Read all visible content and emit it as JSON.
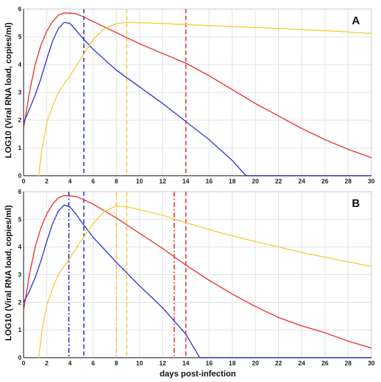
{
  "chart_data": {
    "type": "line",
    "xlabel": "days post-infection",
    "ylabel": "LOG10 (Viral RNA load, copies/ml)",
    "xlim": [
      0,
      30
    ],
    "ylim": [
      0,
      6
    ],
    "x_ticks": [
      "0",
      "2",
      "4",
      "6",
      "8",
      "10",
      "12",
      "14",
      "16",
      "18",
      "20",
      "22",
      "24",
      "26",
      "28",
      "30"
    ],
    "y_ticks": [
      "0",
      "1",
      "2",
      "3",
      "4",
      "5",
      "6"
    ],
    "grid": true,
    "colors": {
      "red": "#e8312f",
      "blue": "#2d35d8",
      "yellow": "#f5cc3a"
    },
    "panels": [
      {
        "label": "A",
        "series": [
          {
            "color": "red",
            "points": [
              [
                0,
                1.7
              ],
              [
                0.5,
                3.0
              ],
              [
                1,
                4.0
              ],
              [
                1.5,
                4.7
              ],
              [
                2,
                5.2
              ],
              [
                2.5,
                5.55
              ],
              [
                3,
                5.78
              ],
              [
                3.5,
                5.86
              ],
              [
                4,
                5.85
              ],
              [
                4.5,
                5.83
              ],
              [
                5,
                5.75
              ],
              [
                6,
                5.55
              ],
              [
                8,
                5.15
              ],
              [
                10,
                4.75
              ],
              [
                12,
                4.4
              ],
              [
                14,
                4.05
              ],
              [
                16,
                3.6
              ],
              [
                18,
                3.1
              ],
              [
                20,
                2.6
              ],
              [
                22,
                2.15
              ],
              [
                24,
                1.7
              ],
              [
                26,
                1.3
              ],
              [
                28,
                0.95
              ],
              [
                30,
                0.65
              ]
            ]
          },
          {
            "color": "blue",
            "points": [
              [
                0,
                1.9
              ],
              [
                0.5,
                2.4
              ],
              [
                1,
                2.9
              ],
              [
                1.5,
                3.5
              ],
              [
                2,
                4.2
              ],
              [
                2.5,
                4.85
              ],
              [
                3,
                5.3
              ],
              [
                3.5,
                5.52
              ],
              [
                4,
                5.48
              ],
              [
                4.5,
                5.25
              ],
              [
                5,
                5.0
              ],
              [
                6,
                4.55
              ],
              [
                8,
                3.8
              ],
              [
                10,
                3.2
              ],
              [
                12,
                2.6
              ],
              [
                14,
                1.95
              ],
              [
                16,
                1.3
              ],
              [
                18,
                0.55
              ],
              [
                19.2,
                0
              ],
              [
                30,
                0
              ]
            ]
          },
          {
            "color": "yellow",
            "points": [
              [
                1.3,
                0
              ],
              [
                1.6,
                1.0
              ],
              [
                2,
                1.9
              ],
              [
                2.5,
                2.5
              ],
              [
                3,
                3.0
              ],
              [
                4,
                3.6
              ],
              [
                5,
                4.25
              ],
              [
                6,
                4.9
              ],
              [
                7,
                5.3
              ],
              [
                8,
                5.48
              ],
              [
                9,
                5.52
              ],
              [
                12,
                5.48
              ],
              [
                15,
                5.42
              ],
              [
                18,
                5.37
              ],
              [
                21,
                5.32
              ],
              [
                24,
                5.26
              ],
              [
                27,
                5.2
              ],
              [
                30,
                5.12
              ]
            ]
          }
        ],
        "vlines": [
          {
            "x": 5.2,
            "color": "blue",
            "style": "dashed"
          },
          {
            "x": 8.9,
            "color": "yellow",
            "style": "dashed"
          },
          {
            "x": 14.0,
            "color": "red",
            "style": "dashed"
          }
        ]
      },
      {
        "label": "B",
        "series": [
          {
            "color": "red",
            "points": [
              [
                0,
                1.7
              ],
              [
                0.5,
                3.0
              ],
              [
                1,
                4.0
              ],
              [
                1.5,
                4.7
              ],
              [
                2,
                5.2
              ],
              [
                2.5,
                5.55
              ],
              [
                3,
                5.78
              ],
              [
                3.5,
                5.86
              ],
              [
                4,
                5.85
              ],
              [
                4.5,
                5.83
              ],
              [
                5,
                5.75
              ],
              [
                6,
                5.55
              ],
              [
                8,
                5.05
              ],
              [
                10,
                4.5
              ],
              [
                12,
                3.95
              ],
              [
                14,
                3.35
              ],
              [
                16,
                2.8
              ],
              [
                18,
                2.3
              ],
              [
                20,
                1.85
              ],
              [
                22,
                1.45
              ],
              [
                24,
                1.15
              ],
              [
                26,
                0.9
              ],
              [
                28,
                0.6
              ],
              [
                30,
                0.35
              ]
            ]
          },
          {
            "color": "blue",
            "points": [
              [
                0,
                2.0
              ],
              [
                0.5,
                2.4
              ],
              [
                1,
                2.9
              ],
              [
                1.5,
                3.5
              ],
              [
                2,
                4.2
              ],
              [
                2.5,
                4.85
              ],
              [
                3,
                5.3
              ],
              [
                3.5,
                5.52
              ],
              [
                4,
                5.45
              ],
              [
                4.5,
                5.2
              ],
              [
                5,
                4.9
              ],
              [
                6,
                4.35
              ],
              [
                8,
                3.45
              ],
              [
                10,
                2.6
              ],
              [
                12,
                1.8
              ],
              [
                14,
                0.85
              ],
              [
                15.2,
                0
              ],
              [
                30,
                0
              ]
            ]
          },
          {
            "color": "yellow",
            "points": [
              [
                1.3,
                0
              ],
              [
                1.6,
                1.0
              ],
              [
                2,
                1.9
              ],
              [
                2.5,
                2.5
              ],
              [
                3,
                3.0
              ],
              [
                4,
                3.6
              ],
              [
                5,
                4.25
              ],
              [
                6,
                4.85
              ],
              [
                7,
                5.3
              ],
              [
                8,
                5.48
              ],
              [
                9,
                5.45
              ],
              [
                12,
                5.15
              ],
              [
                15,
                4.75
              ],
              [
                18,
                4.4
              ],
              [
                21,
                4.1
              ],
              [
                24,
                3.8
              ],
              [
                27,
                3.55
              ],
              [
                30,
                3.3
              ]
            ]
          }
        ],
        "vlines": [
          {
            "x": 3.9,
            "color": "blue",
            "style": "dashdot"
          },
          {
            "x": 5.2,
            "color": "blue",
            "style": "dashed"
          },
          {
            "x": 8.0,
            "color": "yellow",
            "style": "dashdot"
          },
          {
            "x": 8.9,
            "color": "yellow",
            "style": "dashed"
          },
          {
            "x": 13.0,
            "color": "red",
            "style": "dashdot"
          },
          {
            "x": 14.0,
            "color": "red",
            "style": "dashed"
          }
        ]
      }
    ]
  }
}
